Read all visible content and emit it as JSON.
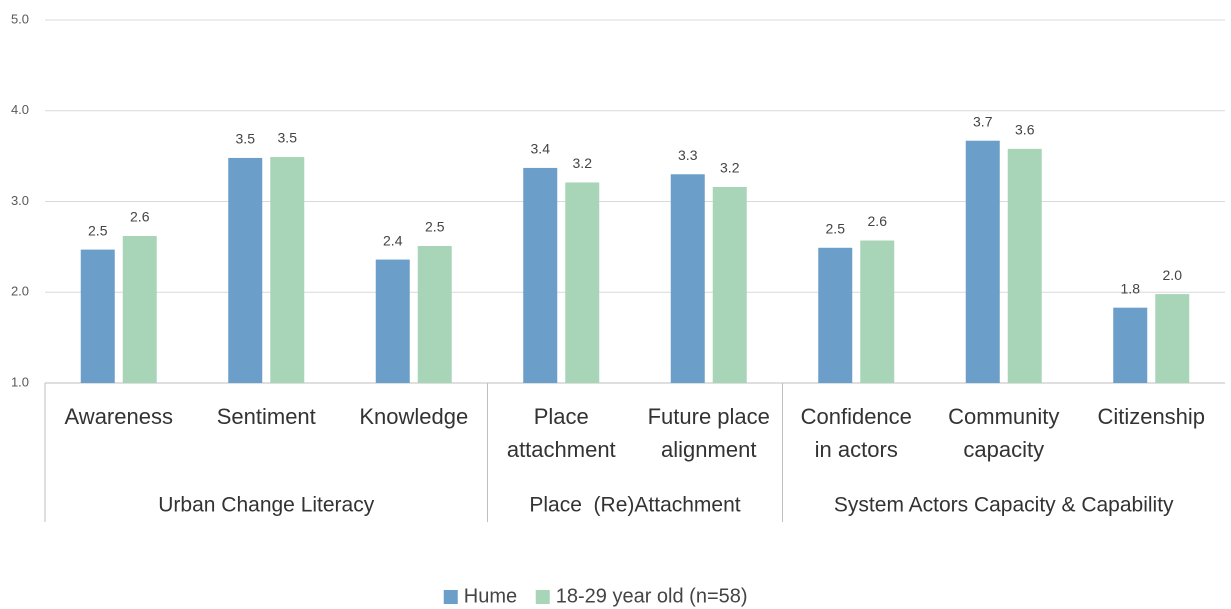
{
  "chart_data": {
    "type": "bar",
    "groups": [
      {
        "name": "Urban Change Literacy",
        "categories": [
          [
            "Awareness"
          ],
          [
            "Sentiment"
          ],
          [
            "Knowledge"
          ]
        ]
      },
      {
        "name": "Place  (Re)Attachment",
        "categories": [
          [
            "Place",
            "attachment"
          ],
          [
            "Future place",
            "alignment"
          ]
        ]
      },
      {
        "name": "System Actors Capacity & Capability",
        "categories": [
          [
            "Confidence",
            "in actors"
          ],
          [
            "Community",
            "capacity"
          ],
          [
            "Citizenship"
          ]
        ]
      }
    ],
    "series": [
      {
        "name": "Hume",
        "color": "#6b9ec8",
        "values": [
          2.47,
          3.48,
          2.36,
          3.37,
          3.3,
          2.49,
          3.67,
          1.83
        ],
        "value_labels": [
          "2.5",
          "3.5",
          "2.4",
          "3.4",
          "3.3",
          "2.5",
          "3.7",
          "1.8"
        ]
      },
      {
        "name": "18-29 year old (n=58)",
        "color": "#a8d5b8",
        "values": [
          2.62,
          3.49,
          2.51,
          3.21,
          3.16,
          2.57,
          3.58,
          1.98
        ],
        "value_labels": [
          "2.6",
          "3.5",
          "2.5",
          "3.2",
          "3.2",
          "2.6",
          "3.6",
          "2.0"
        ]
      }
    ],
    "ylim": [
      1,
      5
    ],
    "yticks": [
      {
        "value": 1,
        "label": "1.0"
      },
      {
        "value": 2,
        "label": "2.0"
      },
      {
        "value": 3,
        "label": "3.0"
      },
      {
        "value": 4,
        "label": "4.0"
      },
      {
        "value": 5,
        "label": "5.0"
      }
    ],
    "grid": true,
    "legend": "bottom"
  }
}
